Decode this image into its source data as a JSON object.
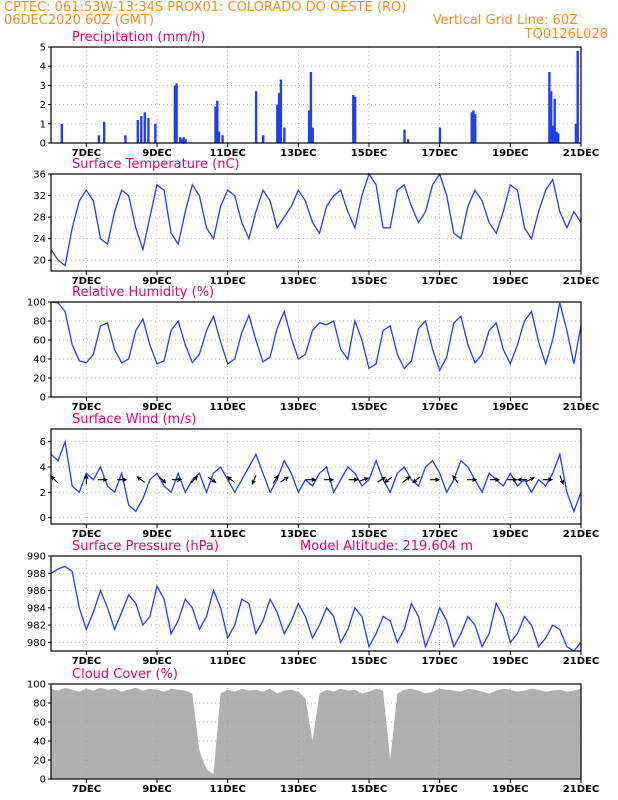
{
  "header": {
    "line1_left": "CPTEC:  061:53W-13:34S  PROX01: COLORADO DO OESTE (RO)",
    "line2_left": "06DEC2020 60Z (GMT)",
    "line2_right": "Vertical Grid Line: 60Z",
    "line3_right": "TQ0126L028"
  },
  "colors": {
    "header": "#ff8c1a",
    "title": "#e6007e",
    "series": "#1f3fff",
    "cloud": "#b0b0b0",
    "grid": "#999999"
  },
  "x_axis": {
    "start": "2020-12-06T00Z",
    "end": "2020-12-21T00Z",
    "vertical_grid": "60Z",
    "tick_labels": [
      "7DEC",
      "9DEC",
      "11DEC",
      "13DEC",
      "15DEC",
      "17DEC",
      "19DEC",
      "21DEC"
    ]
  },
  "chart_data": [
    {
      "id": "precip",
      "type": "bar",
      "title": "Precipitation (mm/h)",
      "ylim": [
        0,
        5
      ],
      "yticks": [
        0,
        1,
        2,
        3,
        4,
        5
      ],
      "grid": true,
      "x_unit": "days since 06DEC2020 00Z",
      "x": [
        0.3,
        1.35,
        1.5,
        2.1,
        2.45,
        2.55,
        2.65,
        2.75,
        2.95,
        3.5,
        3.55,
        3.65,
        3.7,
        3.75,
        3.8,
        4.65,
        4.7,
        4.75,
        4.85,
        5.8,
        6.0,
        6.4,
        6.45,
        6.5,
        6.6,
        7.3,
        7.35,
        7.4,
        8.55,
        8.6,
        10.0,
        10.1,
        11.0,
        11.9,
        11.95,
        12.0,
        14.1,
        14.15,
        14.2,
        14.25,
        14.3,
        14.35,
        14.85,
        14.9
      ],
      "values": [
        1.0,
        0.4,
        1.1,
        0.4,
        1.2,
        1.4,
        1.6,
        1.3,
        1.0,
        3.0,
        3.1,
        0.3,
        0.2,
        0.3,
        0.2,
        1.9,
        2.2,
        0.6,
        0.4,
        2.7,
        0.4,
        2.0,
        2.6,
        3.3,
        0.8,
        1.7,
        3.7,
        0.8,
        2.5,
        2.4,
        0.7,
        0.2,
        0.8,
        1.6,
        1.7,
        1.5,
        3.7,
        2.7,
        0.9,
        2.3,
        0.6,
        0.5,
        1.0,
        4.8
      ]
    },
    {
      "id": "temp",
      "type": "line",
      "title": "Surface Temperature (nC)",
      "ylim": [
        18,
        36
      ],
      "yticks": [
        20,
        24,
        28,
        32,
        36
      ],
      "grid": true,
      "x_unit": "days since 06DEC2020 00Z",
      "x": [
        0,
        0.2,
        0.4,
        0.6,
        0.8,
        1.0,
        1.2,
        1.4,
        1.6,
        1.8,
        2.0,
        2.2,
        2.4,
        2.6,
        2.8,
        3.0,
        3.2,
        3.4,
        3.6,
        3.8,
        4.0,
        4.2,
        4.4,
        4.6,
        4.8,
        5.0,
        5.2,
        5.4,
        5.6,
        5.8,
        6.0,
        6.2,
        6.4,
        6.6,
        6.8,
        7.0,
        7.2,
        7.4,
        7.6,
        7.8,
        8.0,
        8.2,
        8.4,
        8.6,
        8.8,
        9.0,
        9.2,
        9.4,
        9.6,
        9.8,
        10.0,
        10.2,
        10.4,
        10.6,
        10.8,
        11.0,
        11.2,
        11.4,
        11.6,
        11.8,
        12.0,
        12.2,
        12.4,
        12.6,
        12.8,
        13.0,
        13.2,
        13.4,
        13.6,
        13.8,
        14.0,
        14.2,
        14.4,
        14.6,
        14.8,
        15.0
      ],
      "values": [
        22,
        20,
        19,
        26,
        31,
        33,
        31,
        24,
        23,
        29,
        33,
        32,
        26,
        22,
        28,
        34,
        33,
        25,
        23,
        29,
        34,
        32,
        26,
        24,
        30,
        33,
        32,
        27,
        24,
        29,
        33,
        31,
        26,
        28,
        30,
        33,
        31,
        27,
        25,
        30,
        32,
        33,
        29,
        26,
        32,
        36,
        34,
        26,
        26,
        33,
        34,
        30,
        27,
        29,
        34,
        36,
        32,
        25,
        24,
        30,
        33,
        31,
        27,
        25,
        29,
        34,
        33,
        26,
        24,
        29,
        33,
        35,
        29,
        26,
        29,
        27
      ]
    },
    {
      "id": "rh",
      "type": "line",
      "title": "Relative Humidity (%)",
      "ylim": [
        0,
        100
      ],
      "yticks": [
        0,
        20,
        40,
        60,
        80,
        100
      ],
      "grid": true,
      "x_unit": "days since 06DEC2020 00Z",
      "x": [
        0,
        0.2,
        0.4,
        0.6,
        0.8,
        1.0,
        1.2,
        1.4,
        1.6,
        1.8,
        2.0,
        2.2,
        2.4,
        2.6,
        2.8,
        3.0,
        3.2,
        3.4,
        3.6,
        3.8,
        4.0,
        4.2,
        4.4,
        4.6,
        4.8,
        5.0,
        5.2,
        5.4,
        5.6,
        5.8,
        6.0,
        6.2,
        6.4,
        6.6,
        6.8,
        7.0,
        7.2,
        7.4,
        7.6,
        7.8,
        8.0,
        8.2,
        8.4,
        8.6,
        8.8,
        9.0,
        9.2,
        9.4,
        9.6,
        9.8,
        10.0,
        10.2,
        10.4,
        10.6,
        10.8,
        11.0,
        11.2,
        11.4,
        11.6,
        11.8,
        12.0,
        12.2,
        12.4,
        12.6,
        12.8,
        13.0,
        13.2,
        13.4,
        13.6,
        13.8,
        14.0,
        14.2,
        14.4,
        14.6,
        14.8,
        15.0
      ],
      "values": [
        100,
        99,
        90,
        55,
        38,
        36,
        45,
        75,
        78,
        50,
        36,
        40,
        70,
        82,
        55,
        35,
        38,
        70,
        80,
        55,
        36,
        45,
        70,
        85,
        58,
        35,
        40,
        68,
        86,
        60,
        37,
        42,
        72,
        90,
        62,
        40,
        45,
        70,
        78,
        76,
        80,
        50,
        40,
        80,
        60,
        30,
        35,
        70,
        75,
        45,
        30,
        38,
        72,
        80,
        50,
        28,
        42,
        78,
        85,
        55,
        36,
        45,
        70,
        78,
        50,
        35,
        55,
        80,
        90,
        58,
        35,
        60,
        99,
        70,
        35,
        75
      ]
    },
    {
      "id": "wind",
      "type": "line",
      "title": "Surface Wind (m/s)",
      "ylim": [
        -0.5,
        7
      ],
      "yticks": [
        0,
        2,
        4,
        6
      ],
      "grid": true,
      "x_unit": "days since 06DEC2020 00Z",
      "x": [
        0,
        0.2,
        0.4,
        0.6,
        0.8,
        1.0,
        1.2,
        1.4,
        1.6,
        1.8,
        2.0,
        2.2,
        2.4,
        2.6,
        2.8,
        3.0,
        3.2,
        3.4,
        3.6,
        3.8,
        4.0,
        4.2,
        4.4,
        4.6,
        4.8,
        5.0,
        5.2,
        5.4,
        5.6,
        5.8,
        6.0,
        6.2,
        6.4,
        6.6,
        6.8,
        7.0,
        7.2,
        7.4,
        7.6,
        7.8,
        8.0,
        8.2,
        8.4,
        8.6,
        8.8,
        9.0,
        9.2,
        9.4,
        9.6,
        9.8,
        10.0,
        10.2,
        10.4,
        10.6,
        10.8,
        11.0,
        11.2,
        11.4,
        11.6,
        11.8,
        12.0,
        12.2,
        12.4,
        12.6,
        12.8,
        13.0,
        13.2,
        13.4,
        13.6,
        13.8,
        14.0,
        14.2,
        14.4,
        14.6,
        14.8,
        15.0
      ],
      "values": [
        5.0,
        4.5,
        6.0,
        2.5,
        2.0,
        3.5,
        3.0,
        4.0,
        2.5,
        2.0,
        3.5,
        1.0,
        0.5,
        1.5,
        3.0,
        3.5,
        2.5,
        2.0,
        3.5,
        2.0,
        3.0,
        3.5,
        2.0,
        3.5,
        4.0,
        3.0,
        2.0,
        3.0,
        4.0,
        5.0,
        3.5,
        2.0,
        3.0,
        4.5,
        3.5,
        2.0,
        3.0,
        2.5,
        3.5,
        4.0,
        2.0,
        3.0,
        4.0,
        3.5,
        2.5,
        3.0,
        4.5,
        3.0,
        2.0,
        3.5,
        4.0,
        3.0,
        2.5,
        4.0,
        4.5,
        3.5,
        2.0,
        3.0,
        4.5,
        4.0,
        3.0,
        2.0,
        3.5,
        3.0,
        2.5,
        3.5,
        2.5,
        3.0,
        2.0,
        3.0,
        2.5,
        3.5,
        5.0,
        2.0,
        0.5,
        2.0
      ],
      "arrows": {
        "x": [
          0.1,
          1.0,
          1.45,
          2.0,
          2.55,
          3.15,
          3.55,
          4.05,
          4.55,
          5.1,
          5.75,
          6.35,
          6.6,
          7.35,
          7.85,
          8.55,
          8.85,
          9.35,
          9.55,
          10.05,
          10.35,
          10.85,
          11.45,
          11.9,
          12.55,
          13.05,
          13.35,
          13.55,
          14.05,
          14.45
        ],
        "u": [
          -1.5,
          0.0,
          1.0,
          1.2,
          -0.8,
          0.5,
          1.0,
          0.6,
          1.2,
          -1.0,
          -0.5,
          0.6,
          0.8,
          1.0,
          1.2,
          1.4,
          1.2,
          0.8,
          -0.8,
          1.0,
          -0.6,
          1.0,
          -0.5,
          1.2,
          1.0,
          1.0,
          -0.8,
          0.8,
          1.0,
          0.4
        ],
        "v": [
          1.5,
          0.5,
          0.0,
          0.0,
          0.6,
          -0.5,
          0.0,
          0.6,
          -0.8,
          0.8,
          -1.2,
          1.0,
          0.5,
          0.0,
          0.0,
          0.0,
          0.4,
          0.5,
          -0.6,
          0.8,
          -0.5,
          0.0,
          0.7,
          0.0,
          0.0,
          0.0,
          0.0,
          0.4,
          0.0,
          -1.0
        ]
      }
    },
    {
      "id": "pressure",
      "type": "line",
      "title": "Surface Pressure (hPa)",
      "annotation": "Model Altitude: 219.604 m",
      "ylim": [
        979,
        990
      ],
      "yticks": [
        980,
        982,
        984,
        986,
        988,
        990
      ],
      "grid": true,
      "x_unit": "days since 06DEC2020 00Z",
      "x": [
        0,
        0.2,
        0.4,
        0.6,
        0.8,
        1.0,
        1.2,
        1.4,
        1.6,
        1.8,
        2.0,
        2.2,
        2.4,
        2.6,
        2.8,
        3.0,
        3.2,
        3.4,
        3.6,
        3.8,
        4.0,
        4.2,
        4.4,
        4.6,
        4.8,
        5.0,
        5.2,
        5.4,
        5.6,
        5.8,
        6.0,
        6.2,
        6.4,
        6.6,
        6.8,
        7.0,
        7.2,
        7.4,
        7.6,
        7.8,
        8.0,
        8.2,
        8.4,
        8.6,
        8.8,
        9.0,
        9.2,
        9.4,
        9.6,
        9.8,
        10.0,
        10.2,
        10.4,
        10.6,
        10.8,
        11.0,
        11.2,
        11.4,
        11.6,
        11.8,
        12.0,
        12.2,
        12.4,
        12.6,
        12.8,
        13.0,
        13.2,
        13.4,
        13.6,
        13.8,
        14.0,
        14.2,
        14.4,
        14.6,
        14.8,
        15.0
      ],
      "values": [
        988.0,
        988.5,
        988.8,
        988.2,
        984.0,
        981.5,
        983.5,
        986.0,
        984.0,
        981.5,
        983.5,
        985.5,
        984.5,
        982.0,
        983.0,
        986.5,
        985.0,
        981.0,
        982.5,
        985.0,
        984.0,
        981.5,
        983.0,
        986.0,
        984.0,
        980.5,
        982.0,
        985.0,
        984.5,
        981.0,
        982.5,
        985.0,
        983.5,
        981.0,
        982.5,
        984.5,
        983.0,
        980.5,
        982.0,
        984.0,
        983.0,
        980.0,
        981.5,
        984.0,
        983.0,
        979.5,
        981.0,
        983.0,
        982.5,
        980.0,
        981.5,
        984.5,
        983.0,
        979.5,
        981.5,
        984.0,
        982.5,
        979.5,
        981.0,
        983.0,
        982.0,
        979.5,
        981.0,
        984.5,
        983.0,
        980.0,
        981.0,
        983.0,
        982.0,
        979.5,
        980.5,
        982.0,
        981.5,
        979.5,
        979.0,
        980.0
      ]
    },
    {
      "id": "cloud",
      "type": "area",
      "title": "Cloud Cover (%)",
      "ylim": [
        0,
        100
      ],
      "yticks": [
        0,
        20,
        40,
        60,
        80,
        100
      ],
      "grid": true,
      "x_unit": "days since 06DEC2020 00Z",
      "x": [
        0,
        0.2,
        0.4,
        0.6,
        0.8,
        1.0,
        1.2,
        1.4,
        1.6,
        1.8,
        2.0,
        2.2,
        2.4,
        2.6,
        2.8,
        3.0,
        3.2,
        3.4,
        3.6,
        3.8,
        4.0,
        4.2,
        4.4,
        4.6,
        4.8,
        5.0,
        5.2,
        5.4,
        5.6,
        5.8,
        6.0,
        6.2,
        6.4,
        6.6,
        6.8,
        7.0,
        7.2,
        7.4,
        7.6,
        7.8,
        8.0,
        8.2,
        8.4,
        8.6,
        8.8,
        9.0,
        9.2,
        9.4,
        9.6,
        9.8,
        10.0,
        10.2,
        10.4,
        10.6,
        10.8,
        11.0,
        11.2,
        11.4,
        11.6,
        11.8,
        12.0,
        12.2,
        12.4,
        12.6,
        12.8,
        13.0,
        13.2,
        13.4,
        13.6,
        13.8,
        14.0,
        14.2,
        14.4,
        14.6,
        14.8,
        15.0
      ],
      "values": [
        95,
        93,
        96,
        94,
        92,
        95,
        93,
        96,
        94,
        95,
        92,
        94,
        96,
        93,
        95,
        94,
        92,
        95,
        94,
        93,
        90,
        30,
        10,
        5,
        90,
        94,
        92,
        95,
        93,
        94,
        92,
        95,
        90,
        93,
        94,
        92,
        85,
        40,
        90,
        94,
        92,
        95,
        93,
        94,
        90,
        92,
        95,
        93,
        20,
        90,
        94,
        95,
        93,
        90,
        92,
        95,
        94,
        93,
        92,
        95,
        94,
        92,
        90,
        93,
        95,
        94,
        92,
        93,
        95,
        94,
        92,
        93,
        94,
        92,
        93,
        95
      ]
    }
  ]
}
